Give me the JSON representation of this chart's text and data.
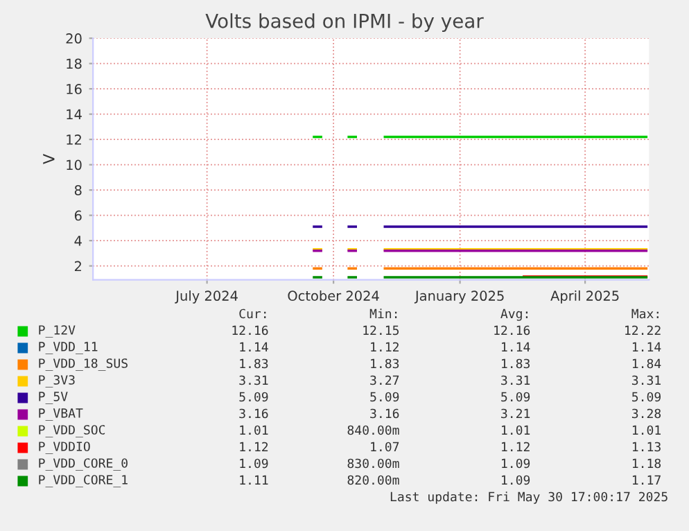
{
  "chart_data": {
    "type": "line",
    "title": "Volts based on IPMI - by year",
    "ylabel": "V",
    "x": [
      "2024-10-01",
      "2024-10-06",
      "2024-10-07",
      "2024-10-26",
      "2024-10-31",
      "2024-11-01",
      "2024-11-21",
      "2025-01-01",
      "2025-03-01",
      "2025-05-28"
    ],
    "series": [
      {
        "name": "P_12V",
        "color": "#00cc00",
        "values": [
          12.2,
          12.2,
          null,
          12.2,
          12.2,
          null,
          12.2,
          12.2,
          12.2,
          12.2
        ]
      },
      {
        "name": "P_VDD_11",
        "color": "#0066b3",
        "values": [
          null,
          null,
          null,
          null,
          null,
          null,
          null,
          null,
          null,
          null
        ]
      },
      {
        "name": "P_VDD_18_SUS",
        "color": "#ff8000",
        "values": [
          1.8,
          1.8,
          null,
          1.8,
          1.8,
          null,
          1.8,
          1.8,
          1.8,
          1.8
        ]
      },
      {
        "name": "P_3V3",
        "color": "#ffcc00",
        "values": [
          3.3,
          3.3,
          null,
          3.3,
          3.3,
          null,
          3.3,
          3.3,
          3.3,
          3.3
        ]
      },
      {
        "name": "P_5V",
        "color": "#330099",
        "values": [
          5.1,
          5.1,
          null,
          5.1,
          5.1,
          null,
          5.1,
          5.1,
          5.1,
          5.1
        ]
      },
      {
        "name": "P_VBAT",
        "color": "#990099",
        "values": [
          3.2,
          3.2,
          null,
          3.2,
          3.2,
          null,
          3.2,
          3.2,
          3.2,
          3.2
        ]
      },
      {
        "name": "P_VDD_SOC",
        "color": "#ccff00",
        "values": [
          null,
          null,
          null,
          null,
          null,
          null,
          null,
          null,
          null,
          null
        ]
      },
      {
        "name": "P_VDDIO",
        "color": "#ff0000",
        "values": [
          null,
          null,
          null,
          null,
          null,
          null,
          null,
          null,
          1.15,
          1.15
        ]
      },
      {
        "name": "P_VDD_CORE_0",
        "color": "#808080",
        "values": [
          null,
          null,
          null,
          null,
          null,
          null,
          null,
          null,
          null,
          null
        ]
      },
      {
        "name": "P_VDD_CORE_1",
        "color": "#008f00",
        "values": [
          1.1,
          1.1,
          null,
          1.1,
          1.1,
          null,
          1.1,
          1.1,
          1.1,
          1.1
        ]
      }
    ],
    "xlim": [
      "2024-04-25",
      "2025-05-30"
    ],
    "xticks": [
      {
        "value": "2024-07-16",
        "label": "July 2024"
      },
      {
        "value": "2024-10-15",
        "label": "October 2024"
      },
      {
        "value": "2025-01-14",
        "label": "January 2025"
      },
      {
        "value": "2025-04-14",
        "label": "April 2025"
      }
    ],
    "ylim": [
      0.9,
      20
    ],
    "yticks": [
      2,
      4,
      6,
      8,
      10,
      12,
      14,
      16,
      18,
      20
    ],
    "grid": true,
    "legend": "bottom",
    "annotations": [
      "Cur:",
      "Min:",
      "Avg:",
      "Max:",
      "12.16",
      "12.15",
      "12.16",
      "12.22",
      "1.14",
      "1.12",
      "1.14",
      "1.14",
      "1.83",
      "1.83",
      "1.83",
      "1.84",
      "3.31",
      "3.27",
      "3.31",
      "3.31",
      "5.09",
      "5.09",
      "5.09",
      "5.09",
      "3.16",
      "3.16",
      "3.21",
      "3.28",
      "1.01",
      "840.00m",
      "1.01",
      "1.01",
      "1.12",
      "1.07",
      "1.12",
      "1.13",
      "1.09",
      "830.00m",
      "1.09",
      "1.18",
      "1.11",
      "820.00m",
      "1.09",
      "1.17",
      "Last update: Fri May 30 17:00:17 2025"
    ]
  }
}
